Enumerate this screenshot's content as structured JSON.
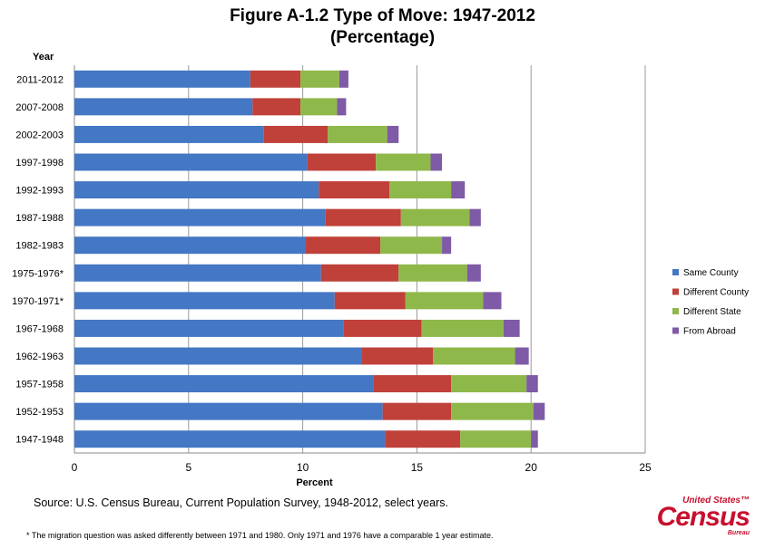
{
  "chart_data": {
    "type": "bar",
    "orientation": "horizontal",
    "stacked": true,
    "title": "Figure A-1.2 Type of Move: 1947-2012",
    "subtitle": "(Percentage)",
    "xlabel": "Percent",
    "ylabel": "Year",
    "xlim": [
      0,
      25
    ],
    "xticks": [
      0,
      5,
      10,
      15,
      20,
      25
    ],
    "grid": true,
    "legend_position": "right",
    "categories": [
      "2011-2012",
      "2007-2008",
      "2002-2003",
      "1997-1998",
      "1992-1993",
      "1987-1988",
      "1982-1983",
      "1975-1976*",
      "1970-1971*",
      "1967-1968",
      "1962-1963",
      "1957-1958",
      "1952-1953",
      "1947-1948"
    ],
    "series": [
      {
        "name": "Same County",
        "color": "#4477c4",
        "values": [
          7.7,
          7.8,
          8.3,
          10.2,
          10.7,
          11.0,
          10.1,
          10.8,
          11.4,
          11.8,
          12.6,
          13.1,
          13.5,
          13.6
        ]
      },
      {
        "name": "Different County",
        "color": "#c0403a",
        "values": [
          2.2,
          2.1,
          2.8,
          3.0,
          3.1,
          3.3,
          3.3,
          3.4,
          3.1,
          3.4,
          3.1,
          3.4,
          3.0,
          3.3
        ]
      },
      {
        "name": "Different State",
        "color": "#8fb84a",
        "values": [
          1.7,
          1.6,
          2.6,
          2.4,
          2.7,
          3.0,
          2.7,
          3.0,
          3.4,
          3.6,
          3.6,
          3.3,
          3.6,
          3.1
        ]
      },
      {
        "name": "From Abroad",
        "color": "#7f5aa6",
        "values": [
          0.4,
          0.4,
          0.5,
          0.5,
          0.6,
          0.5,
          0.4,
          0.6,
          0.8,
          0.7,
          0.6,
          0.5,
          0.5,
          0.3
        ]
      }
    ]
  },
  "source": "Source: U.S. Census Bureau, Current Population Survey, 1948-2012, select years.",
  "footnote": "* The migration question was asked differently between 1971 and 1980. Only 1971 and 1976 have a comparable 1 year estimate.",
  "logo": {
    "line1": "United States™",
    "line2": "Census",
    "line3": "Bureau"
  }
}
